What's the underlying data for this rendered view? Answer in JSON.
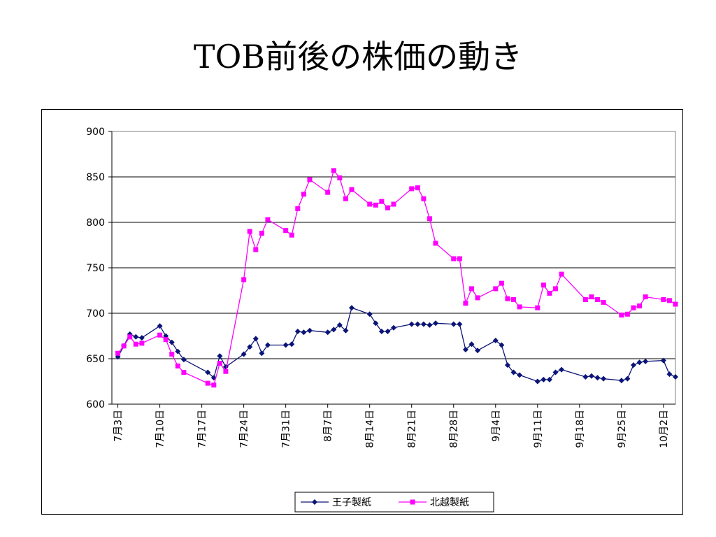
{
  "slide": {
    "title": "TOB前後の株価の動き"
  },
  "colors": {
    "oji": "#0b1477",
    "hokuetsu": "#ff00ff",
    "grid": "#000000"
  },
  "chart_data": {
    "type": "line",
    "yticks": [
      "900",
      "850",
      "800",
      "750",
      "700",
      "650",
      "600"
    ],
    "ylim": [
      600,
      900
    ],
    "xlim": [
      "7月2日",
      "10月4日"
    ],
    "xticks": [
      {
        "date": "7/3",
        "label": "7月3日"
      },
      {
        "date": "7/10",
        "label": "7月10日"
      },
      {
        "date": "7/17",
        "label": "7月17日"
      },
      {
        "date": "7/24",
        "label": "7月24日"
      },
      {
        "date": "7/31",
        "label": "7月31日"
      },
      {
        "date": "8/7",
        "label": "8月7日"
      },
      {
        "date": "8/14",
        "label": "8月14日"
      },
      {
        "date": "8/21",
        "label": "8月21日"
      },
      {
        "date": "8/28",
        "label": "8月28日"
      },
      {
        "date": "9/4",
        "label": "9月4日"
      },
      {
        "date": "9/11",
        "label": "9月11日"
      },
      {
        "date": "9/18",
        "label": "9月18日"
      },
      {
        "date": "9/25",
        "label": "9月25日"
      },
      {
        "date": "10/2",
        "label": "10月2日"
      }
    ],
    "grid": true,
    "legend_position": "bottom-center",
    "series": [
      {
        "name": "王子製紙",
        "marker": "diamond",
        "points": [
          [
            "7/3",
            652
          ],
          [
            "7/4",
            664
          ],
          [
            "7/5",
            677
          ],
          [
            "7/6",
            674
          ],
          [
            "7/7",
            673
          ],
          [
            "7/10",
            686
          ],
          [
            "7/11",
            675
          ],
          [
            "7/12",
            668
          ],
          [
            "7/13",
            658
          ],
          [
            "7/14",
            649
          ],
          [
            "7/18",
            635
          ],
          [
            "7/19",
            629
          ],
          [
            "7/20",
            653
          ],
          [
            "7/21",
            641
          ],
          [
            "7/24",
            655
          ],
          [
            "7/25",
            663
          ],
          [
            "7/26",
            672
          ],
          [
            "7/27",
            656
          ],
          [
            "7/28",
            665
          ],
          [
            "7/31",
            665
          ],
          [
            "8/1",
            666
          ],
          [
            "8/2",
            680
          ],
          [
            "8/3",
            679
          ],
          [
            "8/4",
            681
          ],
          [
            "8/7",
            679
          ],
          [
            "8/8",
            682
          ],
          [
            "8/9",
            687
          ],
          [
            "8/10",
            681
          ],
          [
            "8/11",
            706
          ],
          [
            "8/14",
            699
          ],
          [
            "8/15",
            689
          ],
          [
            "8/16",
            680
          ],
          [
            "8/17",
            680
          ],
          [
            "8/18",
            684
          ],
          [
            "8/21",
            688
          ],
          [
            "8/22",
            688
          ],
          [
            "8/23",
            688
          ],
          [
            "8/24",
            687
          ],
          [
            "8/25",
            689
          ],
          [
            "8/28",
            688
          ],
          [
            "8/29",
            688
          ],
          [
            "8/30",
            660
          ],
          [
            "8/31",
            666
          ],
          [
            "9/1",
            659
          ],
          [
            "9/4",
            670
          ],
          [
            "9/5",
            665
          ],
          [
            "9/6",
            643
          ],
          [
            "9/7",
            635
          ],
          [
            "9/8",
            632
          ],
          [
            "9/11",
            625
          ],
          [
            "9/12",
            627
          ],
          [
            "9/13",
            627
          ],
          [
            "9/14",
            635
          ],
          [
            "9/15",
            638
          ],
          [
            "9/19",
            630
          ],
          [
            "9/20",
            631
          ],
          [
            "9/21",
            629
          ],
          [
            "9/22",
            628
          ],
          [
            "9/25",
            626
          ],
          [
            "9/26",
            628
          ],
          [
            "9/27",
            643
          ],
          [
            "9/28",
            646
          ],
          [
            "9/29",
            647
          ],
          [
            "10/2",
            648
          ],
          [
            "10/3",
            633
          ],
          [
            "10/4",
            630
          ]
        ]
      },
      {
        "name": "北越製紙",
        "marker": "square",
        "points": [
          [
            "7/3",
            656
          ],
          [
            "7/4",
            664
          ],
          [
            "7/5",
            674
          ],
          [
            "7/6",
            666
          ],
          [
            "7/7",
            667
          ],
          [
            "7/10",
            676
          ],
          [
            "7/11",
            671
          ],
          [
            "7/12",
            655
          ],
          [
            "7/13",
            642
          ],
          [
            "7/14",
            635
          ],
          [
            "7/18",
            623
          ],
          [
            "7/19",
            621
          ],
          [
            "7/20",
            645
          ],
          [
            "7/21",
            636
          ],
          [
            "7/24",
            737
          ],
          [
            "7/25",
            790
          ],
          [
            "7/26",
            770
          ],
          [
            "7/27",
            788
          ],
          [
            "7/28",
            803
          ],
          [
            "7/31",
            791
          ],
          [
            "8/1",
            786
          ],
          [
            "8/2",
            815
          ],
          [
            "8/3",
            831
          ],
          [
            "8/4",
            847
          ],
          [
            "8/7",
            833
          ],
          [
            "8/8",
            857
          ],
          [
            "8/9",
            849
          ],
          [
            "8/10",
            826
          ],
          [
            "8/11",
            836
          ],
          [
            "8/14",
            820
          ],
          [
            "8/15",
            819
          ],
          [
            "8/16",
            823
          ],
          [
            "8/17",
            816
          ],
          [
            "8/18",
            820
          ],
          [
            "8/21",
            837
          ],
          [
            "8/22",
            838
          ],
          [
            "8/23",
            826
          ],
          [
            "8/24",
            804
          ],
          [
            "8/25",
            777
          ],
          [
            "8/28",
            760
          ],
          [
            "8/29",
            760
          ],
          [
            "8/30",
            711
          ],
          [
            "8/31",
            727
          ],
          [
            "9/1",
            717
          ],
          [
            "9/4",
            727
          ],
          [
            "9/5",
            733
          ],
          [
            "9/6",
            716
          ],
          [
            "9/7",
            715
          ],
          [
            "9/8",
            707
          ],
          [
            "9/11",
            706
          ],
          [
            "9/12",
            731
          ],
          [
            "9/13",
            722
          ],
          [
            "9/14",
            727
          ],
          [
            "9/15",
            743
          ],
          [
            "9/19",
            715
          ],
          [
            "9/20",
            718
          ],
          [
            "9/21",
            715
          ],
          [
            "9/22",
            712
          ],
          [
            "9/25",
            698
          ],
          [
            "9/26",
            699
          ],
          [
            "9/27",
            706
          ],
          [
            "9/28",
            708
          ],
          [
            "9/29",
            718
          ],
          [
            "10/2",
            715
          ],
          [
            "10/3",
            714
          ],
          [
            "10/4",
            710
          ]
        ]
      }
    ]
  }
}
